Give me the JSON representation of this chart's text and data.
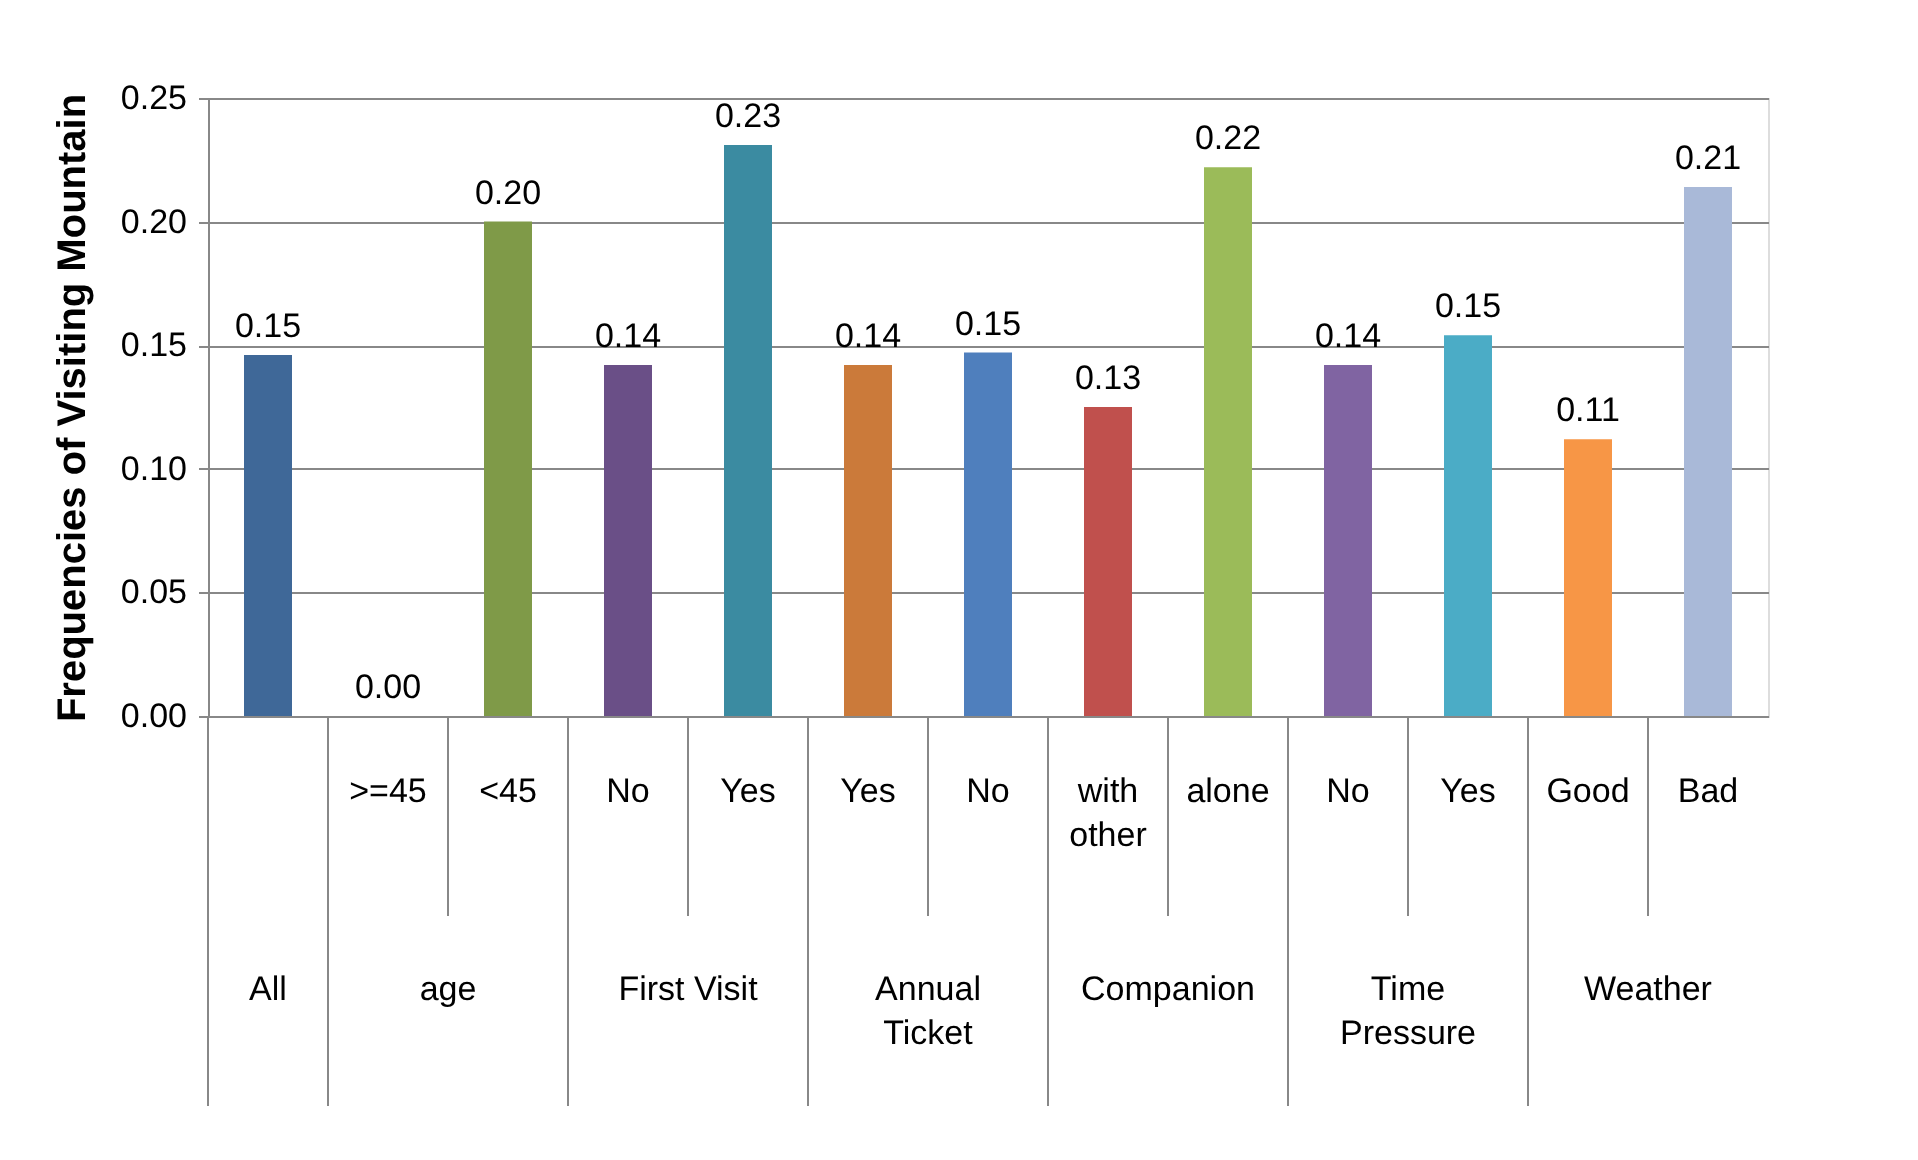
{
  "chart_data": {
    "type": "bar",
    "ylabel": "Frequencies of Visiting Mountain",
    "categories": [
      null,
      ">=45",
      "<45",
      "No",
      "Yes",
      "Yes",
      "No",
      "with other",
      "alone",
      "No",
      "Yes",
      "Good",
      "Bad"
    ],
    "values": [
      0.146,
      0.0,
      0.2,
      0.142,
      0.231,
      0.142,
      0.147,
      0.125,
      0.222,
      0.142,
      0.154,
      0.112,
      0.214
    ],
    "value_labels": [
      "0.15",
      "0.00",
      "0.20",
      "0.14",
      "0.23",
      "0.14",
      "0.15",
      "0.13",
      "0.22",
      "0.14",
      "0.15",
      "0.11",
      "0.21"
    ],
    "colors": [
      "#3f6898",
      "#4f81bd",
      "#7f9a48",
      "#6a4f87",
      "#3b8ba1",
      "#cb7a3a",
      "#4f7fbd",
      "#c0504d",
      "#9bbb59",
      "#8064a2",
      "#4bacc6",
      "#f79646",
      "#a9b9d8"
    ],
    "annotations": [
      "All",
      "age",
      "First Visit",
      "Annual Ticket",
      "Companion",
      "Time Pressure",
      "Weather"
    ],
    "ylim": [
      0,
      0.25
    ],
    "yticks": [
      {
        "value": 0,
        "label": "0.00"
      },
      {
        "value": 0.05,
        "label": "0.05"
      },
      {
        "value": 0.1,
        "label": "0.10"
      },
      {
        "value": 0.15,
        "label": "0.15"
      },
      {
        "value": 0.2,
        "label": "0.20"
      },
      {
        "value": 0.25,
        "label": "0.25"
      }
    ],
    "grid": "y"
  }
}
